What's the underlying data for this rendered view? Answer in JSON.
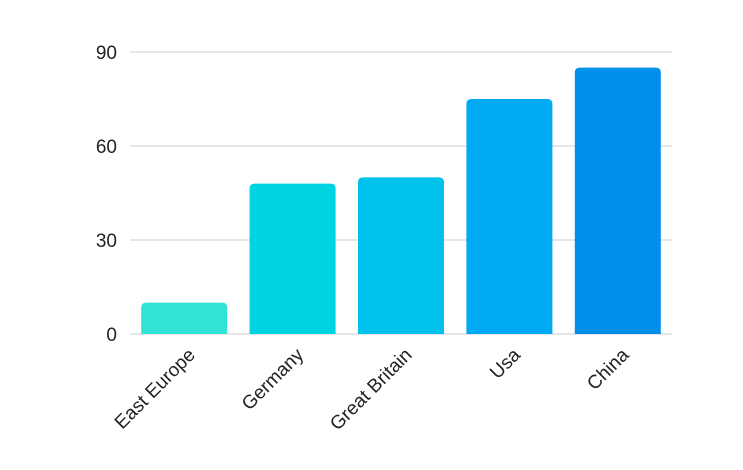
{
  "chart_data": {
    "type": "bar",
    "title": "",
    "xlabel": "",
    "ylabel": "",
    "categories": [
      "East Europe",
      "Germany",
      "Great Britain",
      "Usa",
      "China"
    ],
    "values": [
      10,
      48,
      50,
      75,
      85
    ],
    "ylim": [
      0,
      90
    ],
    "yticks": [
      "0",
      "30",
      "60",
      "90"
    ],
    "grid": true,
    "legend": "none",
    "bar_colors": [
      "#31e3d5",
      "#00d4e2",
      "#00c2ec",
      "#00abf4",
      "#0090ea"
    ]
  }
}
